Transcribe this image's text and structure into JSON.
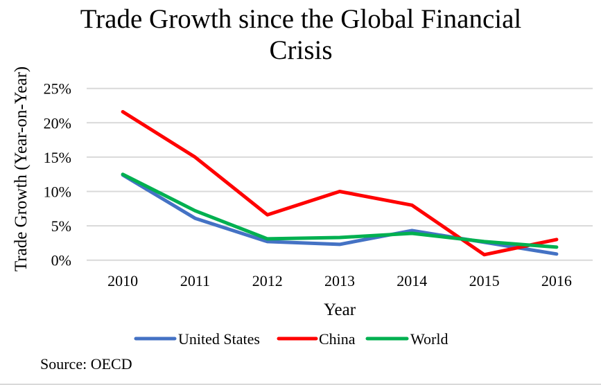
{
  "chart_data": {
    "type": "line",
    "title": [
      "Trade Growth since the Global Financial",
      "Crisis"
    ],
    "xlabel": "Year",
    "ylabel": "Trade Growth (Year-on-Year)",
    "categories": [
      "2010",
      "2011",
      "2012",
      "2013",
      "2014",
      "2015",
      "2016"
    ],
    "ylim": [
      0,
      25
    ],
    "yticks": [
      0,
      5,
      10,
      15,
      20,
      25
    ],
    "ytick_labels": [
      "0%",
      "5%",
      "10%",
      "15%",
      "20%",
      "25%"
    ],
    "grid": true,
    "legend_position": "bottom",
    "series": [
      {
        "name": "United States",
        "color": "#4472c4",
        "values": [
          12.4,
          6.1,
          2.7,
          2.3,
          4.3,
          2.6,
          0.9
        ]
      },
      {
        "name": "China",
        "color": "#ff0000",
        "values": [
          21.6,
          15.0,
          6.6,
          10.0,
          8.0,
          0.8,
          3.0
        ]
      },
      {
        "name": "World",
        "color": "#00b050",
        "values": [
          12.5,
          7.2,
          3.1,
          3.3,
          3.9,
          2.7,
          1.9
        ]
      }
    ],
    "source": "Source: OECD"
  }
}
